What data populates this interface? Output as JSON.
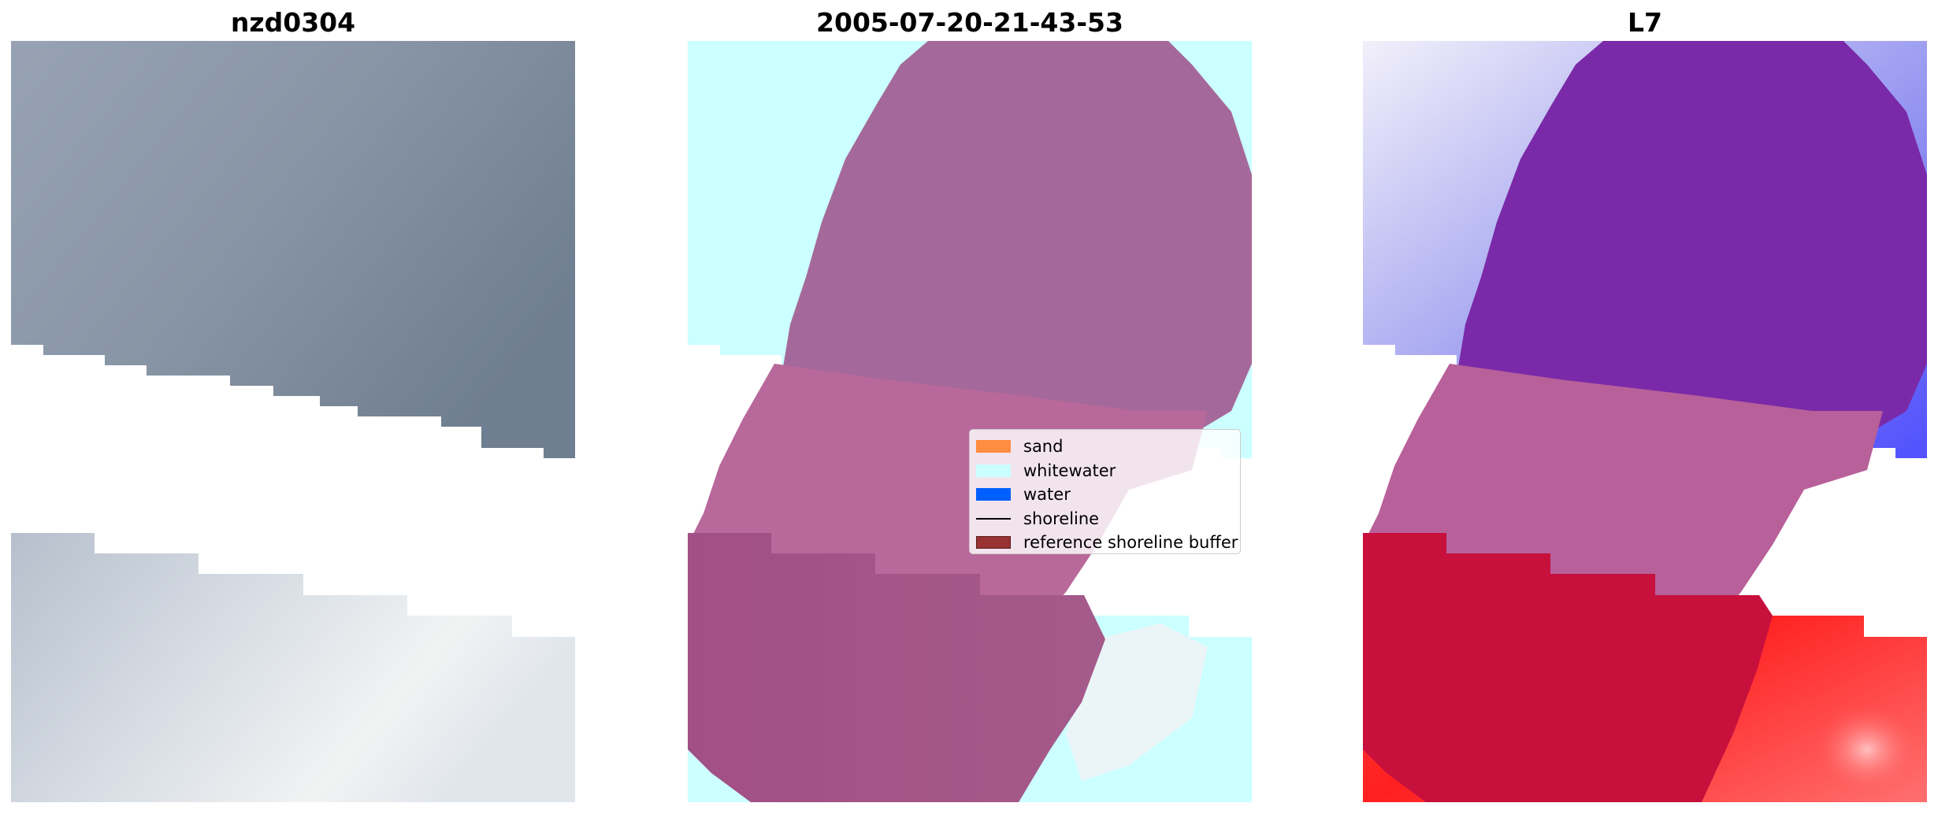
{
  "panels": [
    {
      "title": "nzd0304",
      "content": "rgb-satellite-image"
    },
    {
      "title": "2005-07-20-21-43-53",
      "content": "classified-image-overlay"
    },
    {
      "title": "L7",
      "content": "water-index-image-overlay"
    }
  ],
  "legend": {
    "items": [
      {
        "label": "sand",
        "type": "patch",
        "color": "#ff8c40"
      },
      {
        "label": "whitewater",
        "type": "patch",
        "color": "#ccffff"
      },
      {
        "label": "water",
        "type": "patch",
        "color": "#0060ff"
      },
      {
        "label": "shoreline",
        "type": "line",
        "color": "#000000"
      },
      {
        "label": "reference shoreline buffer",
        "type": "patch",
        "color": "#993333"
      }
    ]
  },
  "colors": {
    "buffer_overlay": "#b03a6e",
    "whitewater": "#ccffff",
    "index_positive": "#e8002a",
    "index_negative": "#3a3aff"
  }
}
